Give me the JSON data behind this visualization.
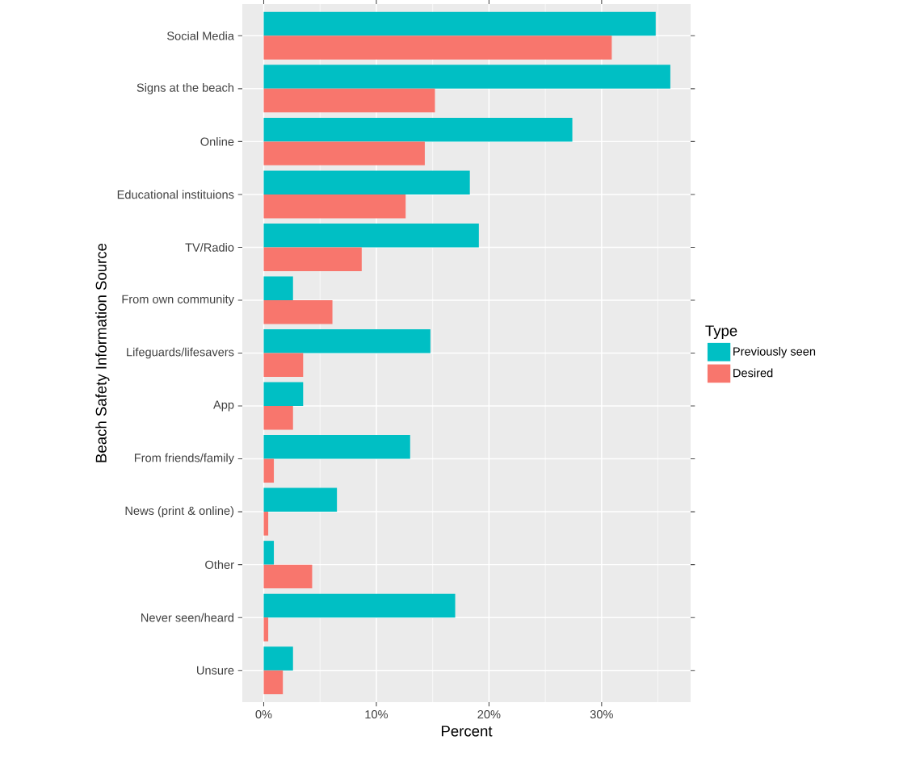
{
  "chart_data": {
    "type": "bar",
    "orientation": "horizontal",
    "xlabel": "Percent",
    "ylabel": "Beach Safety Information Source",
    "legend_title": "Type",
    "categories": [
      "Social Media",
      "Signs at the beach",
      "Online",
      "Educational instituions",
      "TV/Radio",
      "From own community",
      "Lifeguards/lifesavers",
      "App",
      "From friends/family",
      "News (print & online)",
      "Other",
      "Never seen/heard",
      "Unsure"
    ],
    "series": [
      {
        "name": "Previously seen",
        "color": "#00bfc4",
        "values": [
          34.8,
          36.1,
          27.4,
          18.3,
          19.1,
          2.6,
          14.8,
          3.5,
          13.0,
          6.5,
          0.9,
          17.0,
          2.6
        ]
      },
      {
        "name": "Desired",
        "color": "#f8766d",
        "values": [
          30.9,
          15.2,
          14.3,
          12.6,
          8.7,
          6.1,
          3.5,
          2.6,
          0.9,
          0.4,
          4.3,
          0.4,
          1.7
        ]
      }
    ],
    "xlim": [
      -1.9,
      37.9
    ],
    "xticks": [
      {
        "value": 0,
        "label": "0%"
      },
      {
        "value": 10,
        "label": "10%"
      },
      {
        "value": 20,
        "label": "20%"
      },
      {
        "value": 30,
        "label": "30%"
      }
    ],
    "grid": true,
    "legend": "right"
  }
}
